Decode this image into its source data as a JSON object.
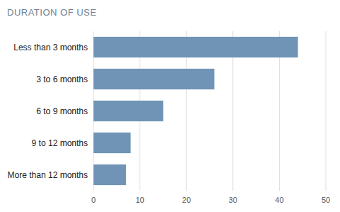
{
  "chart_data": {
    "type": "bar",
    "orientation": "horizontal",
    "title": "DURATION OF USE",
    "categories": [
      "Less than 3 months",
      "3 to 6 months",
      "6 to 9 months",
      "9 to 12 months",
      "More than 12 months"
    ],
    "values": [
      44,
      26,
      15,
      8,
      7
    ],
    "color": "#7094b5",
    "xlim": [
      0,
      50
    ],
    "xticks": [
      0,
      10,
      20,
      30,
      40,
      50
    ],
    "grid": true
  }
}
